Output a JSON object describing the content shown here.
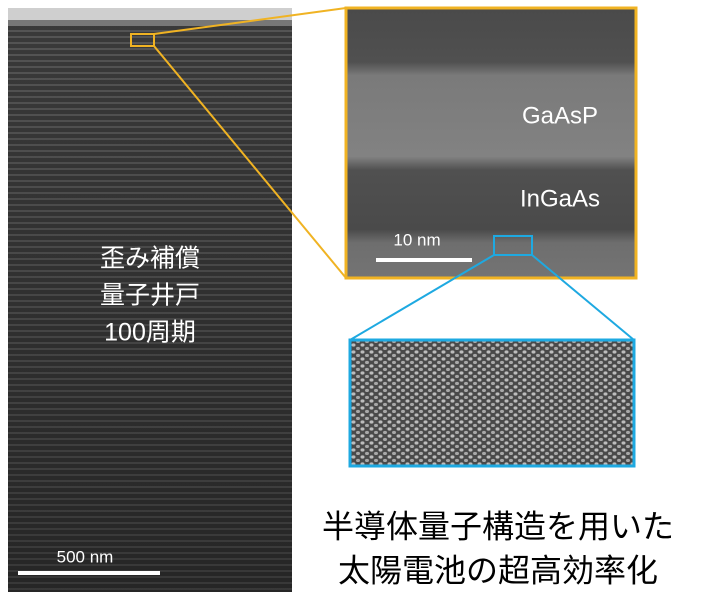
{
  "overview": {
    "labels": [
      "歪み補償",
      "量子井戸",
      "100周期"
    ],
    "scale_bar": "500 nm"
  },
  "zoom": {
    "layer_top": "GaAsP",
    "layer_bottom": "InGaAs",
    "scale_bar": "10 nm"
  },
  "caption": [
    "半導体量子構造を用いた",
    "太陽電池の超高効率化"
  ]
}
